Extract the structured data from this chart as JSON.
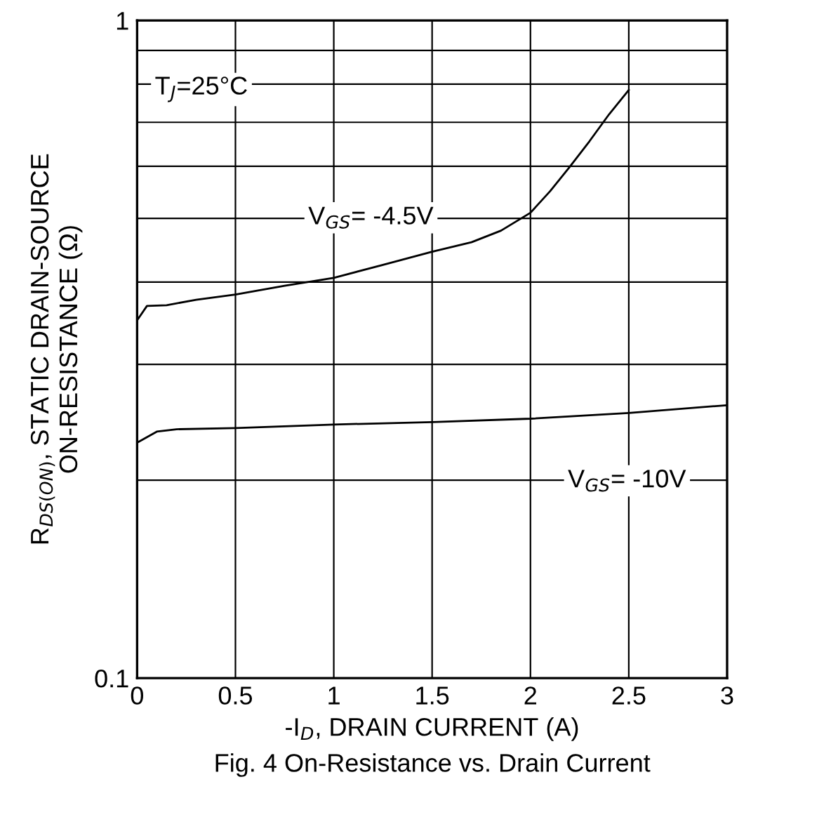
{
  "chart_data": {
    "type": "line",
    "title": "Fig. 4 On-Resistance vs. Drain Current",
    "xlabel": "-I$_{D}$, DRAIN CURRENT (A)",
    "ylabel": "R$_{DS(ON)}$, STATIC DRAIN-SOURCE\nON-RESISTANCE (Ω)",
    "series": [
      {
        "color": "#000000",
        "x": [
          0,
          0.05,
          0.15,
          0.3,
          0.5,
          0.75,
          1.0,
          1.25,
          1.5,
          1.7,
          1.85,
          2.0,
          2.1,
          2.2,
          2.3,
          2.4,
          2.5
        ],
        "values": [
          0.35,
          0.368,
          0.369,
          0.376,
          0.383,
          0.395,
          0.406,
          0.425,
          0.445,
          0.46,
          0.479,
          0.51,
          0.55,
          0.599,
          0.655,
          0.72,
          0.784
        ]
      },
      {
        "color": "#000000",
        "x": [
          0,
          0.1,
          0.2,
          0.5,
          1.0,
          1.5,
          2.0,
          2.5,
          3.0
        ],
        "values": [
          0.228,
          0.237,
          0.239,
          0.24,
          0.243,
          0.245,
          0.248,
          0.253,
          0.26
        ]
      }
    ],
    "annotations": [
      "T$_{J}$=25°C",
      "V$_{GS}$= -4.5V",
      "V$_{GS}$= -10V"
    ],
    "log": "y",
    "xlim": [
      0,
      3
    ],
    "ylim": [
      0.1,
      1
    ],
    "xticks": [
      0,
      0.5,
      1,
      1.5,
      2,
      2.5,
      3
    ],
    "yticks": [
      0.1,
      {
        "value": 0.2,
        "label": null
      },
      {
        "value": 0.3,
        "label": null
      },
      {
        "value": 0.4,
        "label": null
      },
      {
        "value": 0.5,
        "label": null
      },
      {
        "value": 0.6,
        "label": null
      },
      {
        "value": 0.7,
        "label": null
      },
      {
        "value": 0.8,
        "label": null
      },
      {
        "value": 0.9,
        "label": null
      },
      1
    ],
    "grid": true,
    "legend": false
  }
}
